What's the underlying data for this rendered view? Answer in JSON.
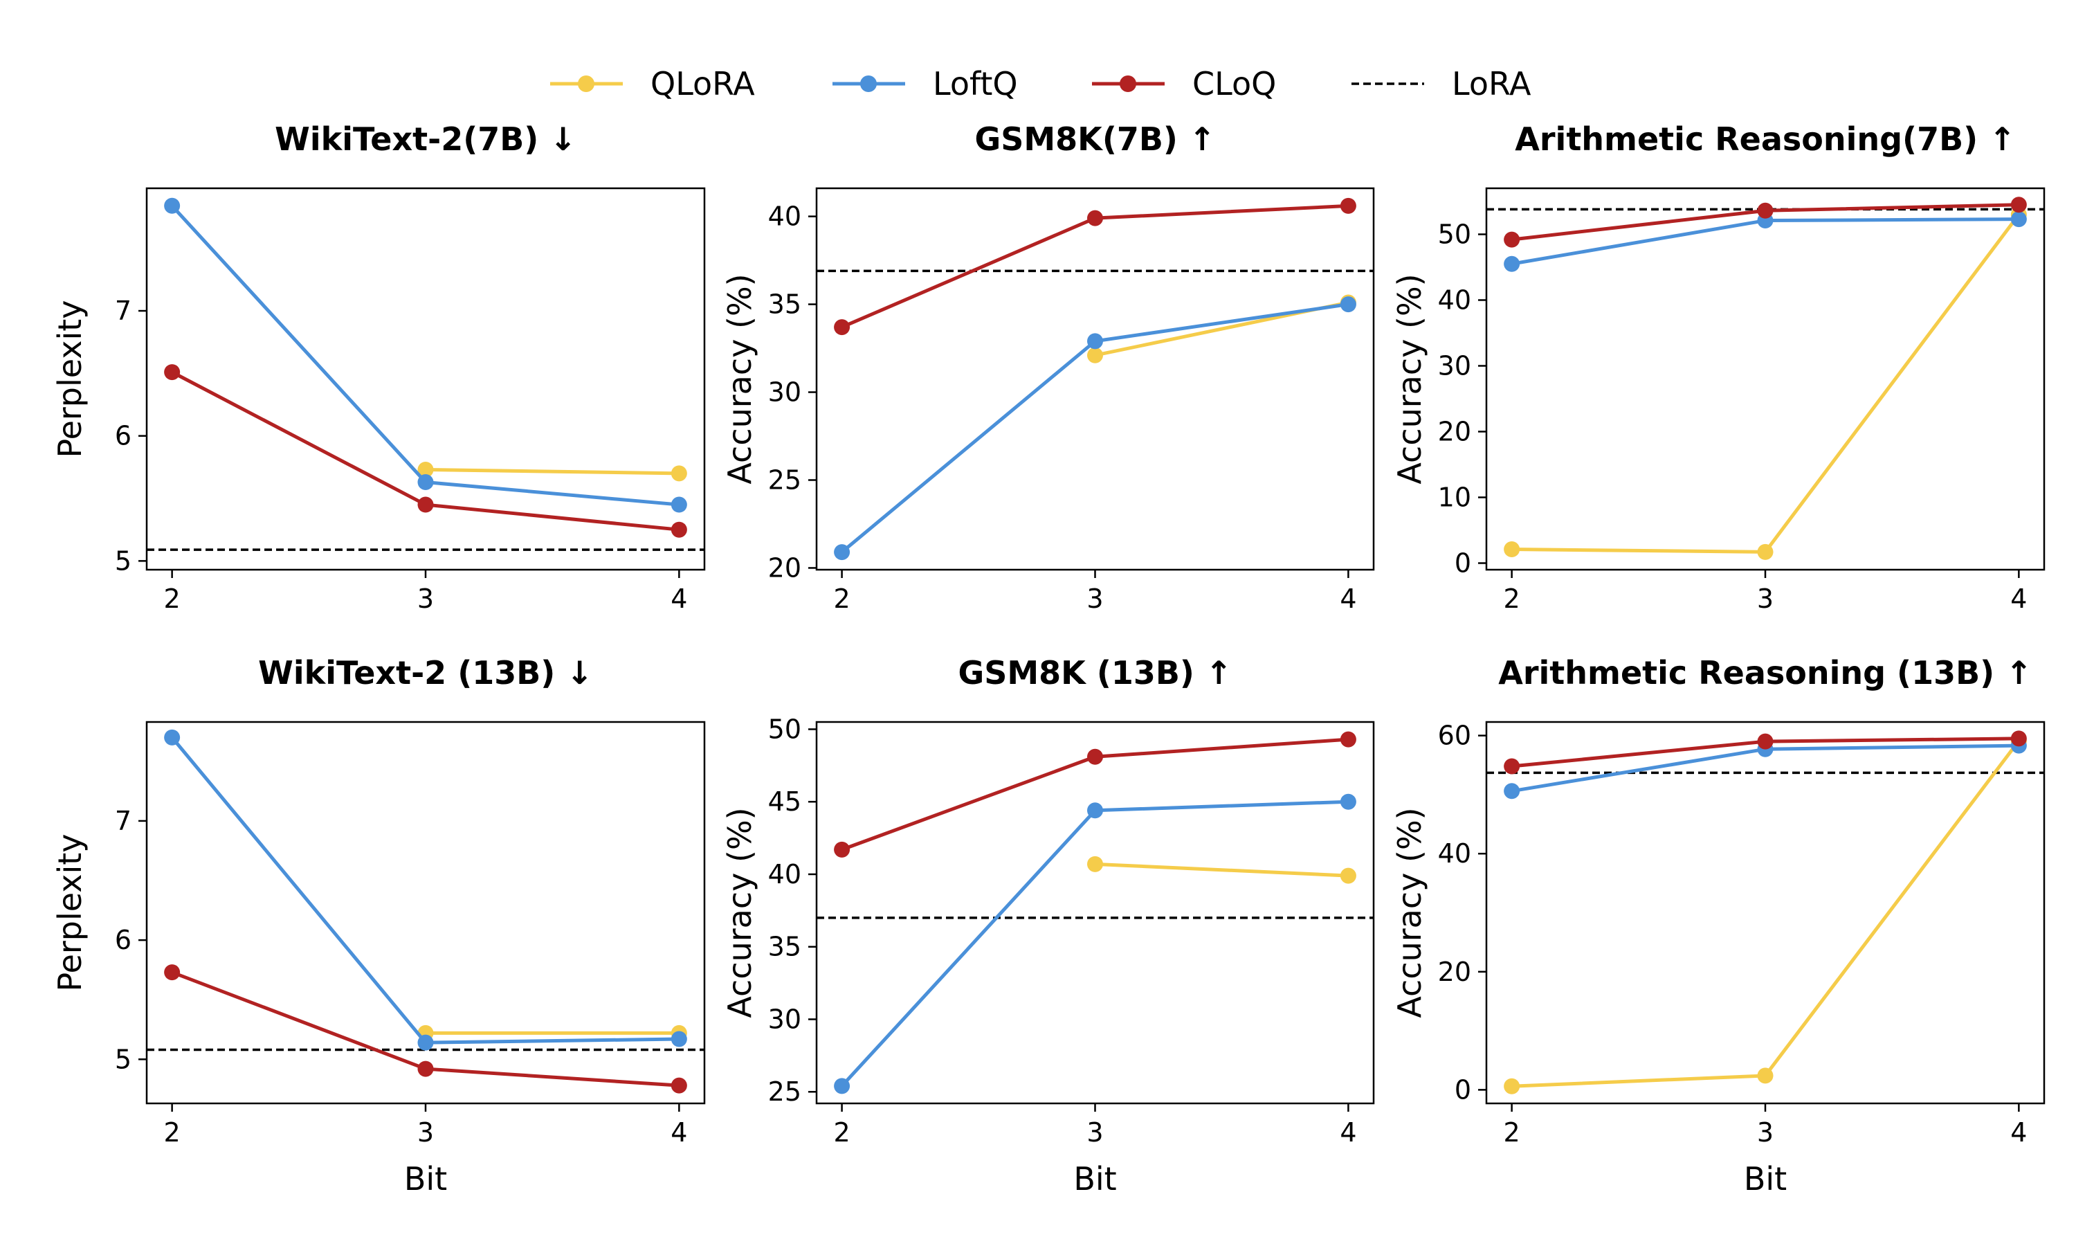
{
  "legend": [
    {
      "name": "QLoRA",
      "color": "#F5CC4A",
      "style": "line-marker"
    },
    {
      "name": "LoftQ",
      "color": "#4A90D9",
      "style": "line-marker"
    },
    {
      "name": "CLoQ",
      "color": "#B22222",
      "style": "line-marker"
    },
    {
      "name": "LoRA",
      "color": "#000000",
      "style": "dashed"
    }
  ],
  "chart_data": [
    {
      "type": "line",
      "title": "WikiText-2(7B) ↓",
      "xlabel": "",
      "ylabel": "Perplexity",
      "x": [
        2,
        3,
        4
      ],
      "ylim": [
        4.93,
        7.98
      ],
      "yticks": [
        5,
        6,
        7
      ],
      "series": [
        {
          "name": "QLoRA",
          "values": [
            null,
            5.73,
            5.7
          ]
        },
        {
          "name": "LoftQ",
          "values": [
            7.84,
            5.63,
            5.45
          ]
        },
        {
          "name": "CLoQ",
          "values": [
            6.51,
            5.45,
            5.25
          ]
        }
      ],
      "reference": {
        "name": "LoRA",
        "value": 5.09
      }
    },
    {
      "type": "line",
      "title": "GSM8K(7B) ↑",
      "xlabel": "",
      "ylabel": "Accuracy (%)",
      "x": [
        2,
        3,
        4
      ],
      "ylim": [
        19.9,
        41.6
      ],
      "yticks": [
        20,
        25,
        30,
        35,
        40
      ],
      "series": [
        {
          "name": "QLoRA",
          "values": [
            null,
            32.1,
            35.1
          ]
        },
        {
          "name": "LoftQ",
          "values": [
            20.9,
            32.9,
            35.0
          ]
        },
        {
          "name": "CLoQ",
          "values": [
            33.7,
            39.9,
            40.6
          ]
        }
      ],
      "reference": {
        "name": "LoRA",
        "value": 36.9
      }
    },
    {
      "type": "line",
      "title": "Arithmetic Reasoning(7B) ↑",
      "xlabel": "",
      "ylabel": "Accuracy (%)",
      "x": [
        2,
        3,
        4
      ],
      "ylim": [
        -1.0,
        57.0
      ],
      "yticks": [
        0,
        10,
        20,
        30,
        40,
        50
      ],
      "series": [
        {
          "name": "QLoRA",
          "values": [
            2.1,
            1.7,
            53.0
          ]
        },
        {
          "name": "LoftQ",
          "values": [
            45.5,
            52.1,
            52.3
          ]
        },
        {
          "name": "CLoQ",
          "values": [
            49.2,
            53.6,
            54.5
          ]
        }
      ],
      "reference": {
        "name": "LoRA",
        "value": 53.8
      }
    },
    {
      "type": "line",
      "title": "WikiText-2 (13B) ↓",
      "xlabel": "Bit",
      "ylabel": "Perplexity",
      "x": [
        2,
        3,
        4
      ],
      "ylim": [
        4.63,
        7.83
      ],
      "yticks": [
        5,
        6,
        7
      ],
      "series": [
        {
          "name": "QLoRA",
          "values": [
            null,
            5.22,
            5.22
          ]
        },
        {
          "name": "LoftQ",
          "values": [
            7.7,
            5.14,
            5.17
          ]
        },
        {
          "name": "CLoQ",
          "values": [
            5.73,
            4.92,
            4.78
          ]
        }
      ],
      "reference": {
        "name": "LoRA",
        "value": 5.08
      }
    },
    {
      "type": "line",
      "title": "GSM8K (13B) ↑",
      "xlabel": "Bit",
      "ylabel": "Accuracy (%)",
      "x": [
        2,
        3,
        4
      ],
      "ylim": [
        24.2,
        50.5
      ],
      "yticks": [
        25,
        30,
        35,
        40,
        45,
        50
      ],
      "series": [
        {
          "name": "QLoRA",
          "values": [
            null,
            40.7,
            39.9
          ]
        },
        {
          "name": "LoftQ",
          "values": [
            25.4,
            44.4,
            45.0
          ]
        },
        {
          "name": "CLoQ",
          "values": [
            41.7,
            48.1,
            49.3
          ]
        }
      ],
      "reference": {
        "name": "LoRA",
        "value": 37.0
      }
    },
    {
      "type": "line",
      "title": "Arithmetic Reasoning (13B) ↑",
      "xlabel": "Bit",
      "ylabel": "Accuracy (%)",
      "x": [
        2,
        3,
        4
      ],
      "ylim": [
        -2.3,
        62.3
      ],
      "yticks": [
        0,
        20,
        40,
        60
      ],
      "series": [
        {
          "name": "QLoRA",
          "values": [
            0.6,
            2.4,
            59.1
          ]
        },
        {
          "name": "LoftQ",
          "values": [
            50.6,
            57.7,
            58.3
          ]
        },
        {
          "name": "CLoQ",
          "values": [
            54.8,
            59.0,
            59.5
          ]
        }
      ],
      "reference": {
        "name": "LoRA",
        "value": 53.7
      }
    }
  ]
}
